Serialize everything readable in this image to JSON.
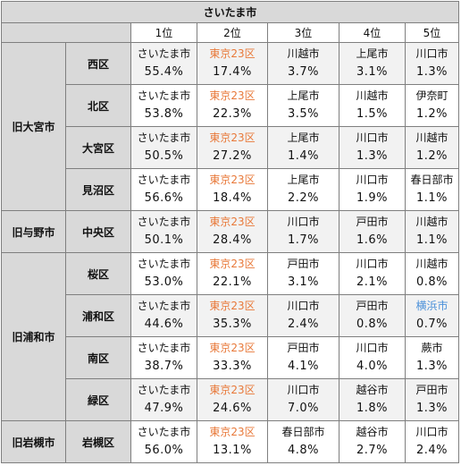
{
  "title": "さいたま市",
  "rank_headers": [
    "1位",
    "2位",
    "3位",
    "4位",
    "5位"
  ],
  "colors": {
    "tokyo": "#e8793a",
    "yokohama": "#4a90d9",
    "header_bg": "#d9d9d9",
    "stripe_bg": "#f2f2f2"
  },
  "groups": [
    {
      "name": "旧大宮市",
      "wards": [
        {
          "ward": "西区",
          "ranks": [
            {
              "name": "さいたま市",
              "pct": "55.4%"
            },
            {
              "name": "東京23区",
              "pct": "17.4%",
              "color": "tokyo"
            },
            {
              "name": "川越市",
              "pct": "3.7%"
            },
            {
              "name": "上尾市",
              "pct": "3.1%"
            },
            {
              "name": "川口市",
              "pct": "1.3%"
            }
          ]
        },
        {
          "ward": "北区",
          "ranks": [
            {
              "name": "さいたま市",
              "pct": "53.8%"
            },
            {
              "name": "東京23区",
              "pct": "22.3%",
              "color": "tokyo"
            },
            {
              "name": "上尾市",
              "pct": "3.5%"
            },
            {
              "name": "川越市",
              "pct": "1.5%"
            },
            {
              "name": "伊奈町",
              "pct": "1.2%"
            }
          ]
        },
        {
          "ward": "大宮区",
          "ranks": [
            {
              "name": "さいたま市",
              "pct": "50.5%"
            },
            {
              "name": "東京23区",
              "pct": "27.2%",
              "color": "tokyo"
            },
            {
              "name": "上尾市",
              "pct": "1.4%"
            },
            {
              "name": "川口市",
              "pct": "1.3%"
            },
            {
              "name": "川越市",
              "pct": "1.2%"
            }
          ]
        },
        {
          "ward": "見沼区",
          "ranks": [
            {
              "name": "さいたま市",
              "pct": "56.6%"
            },
            {
              "name": "東京23区",
              "pct": "18.4%",
              "color": "tokyo"
            },
            {
              "name": "上尾市",
              "pct": "2.2%"
            },
            {
              "name": "川口市",
              "pct": "1.9%"
            },
            {
              "name": "春日部市",
              "pct": "1.1%"
            }
          ]
        }
      ]
    },
    {
      "name": "旧与野市",
      "wards": [
        {
          "ward": "中央区",
          "ranks": [
            {
              "name": "さいたま市",
              "pct": "50.1%"
            },
            {
              "name": "東京23区",
              "pct": "28.4%",
              "color": "tokyo"
            },
            {
              "name": "川口市",
              "pct": "1.7%"
            },
            {
              "name": "戸田市",
              "pct": "1.6%"
            },
            {
              "name": "川越市",
              "pct": "1.1%"
            }
          ]
        }
      ]
    },
    {
      "name": "旧浦和市",
      "wards": [
        {
          "ward": "桜区",
          "ranks": [
            {
              "name": "さいたま市",
              "pct": "53.0%"
            },
            {
              "name": "東京23区",
              "pct": "22.1%",
              "color": "tokyo"
            },
            {
              "name": "戸田市",
              "pct": "3.1%"
            },
            {
              "name": "川口市",
              "pct": "2.1%"
            },
            {
              "name": "川越市",
              "pct": "0.8%"
            }
          ]
        },
        {
          "ward": "浦和区",
          "ranks": [
            {
              "name": "さいたま市",
              "pct": "44.6%"
            },
            {
              "name": "東京23区",
              "pct": "35.3%",
              "color": "tokyo"
            },
            {
              "name": "川口市",
              "pct": "2.4%"
            },
            {
              "name": "戸田市",
              "pct": "0.8%"
            },
            {
              "name": "横浜市",
              "pct": "0.7%",
              "color": "yokohama"
            }
          ]
        },
        {
          "ward": "南区",
          "ranks": [
            {
              "name": "さいたま市",
              "pct": "38.7%"
            },
            {
              "name": "東京23区",
              "pct": "33.3%",
              "color": "tokyo"
            },
            {
              "name": "戸田市",
              "pct": "4.1%"
            },
            {
              "name": "川口市",
              "pct": "4.0%"
            },
            {
              "name": "蕨市",
              "pct": "1.3%"
            }
          ]
        },
        {
          "ward": "緑区",
          "ranks": [
            {
              "name": "さいたま市",
              "pct": "47.9%"
            },
            {
              "name": "東京23区",
              "pct": "24.6%",
              "color": "tokyo"
            },
            {
              "name": "川口市",
              "pct": "7.0%"
            },
            {
              "name": "越谷市",
              "pct": "1.8%"
            },
            {
              "name": "戸田市",
              "pct": "1.3%"
            }
          ]
        }
      ]
    },
    {
      "name": "旧岩槻市",
      "wards": [
        {
          "ward": "岩槻区",
          "ranks": [
            {
              "name": "さいたま市",
              "pct": "56.0%"
            },
            {
              "name": "東京23区",
              "pct": "13.1%",
              "color": "tokyo"
            },
            {
              "name": "春日部市",
              "pct": "4.8%"
            },
            {
              "name": "越谷市",
              "pct": "2.7%"
            },
            {
              "name": "川口市",
              "pct": "2.4%"
            }
          ]
        }
      ]
    }
  ]
}
